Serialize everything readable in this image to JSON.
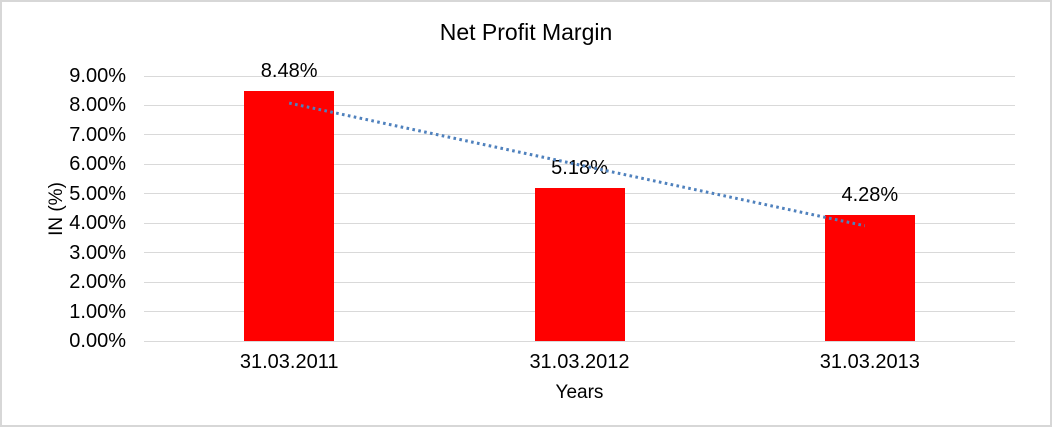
{
  "chart_data": {
    "type": "bar",
    "title": "Net Profit Margin",
    "xlabel": "Years",
    "ylabel": "IN (%)",
    "categories": [
      "31.03.2011",
      "31.03.2012",
      "31.03.2013"
    ],
    "values": [
      8.48,
      5.18,
      4.28
    ],
    "data_labels": [
      "8.48%",
      "5.18%",
      "4.28%"
    ],
    "ylim": [
      0,
      9
    ],
    "ytick_step": 1,
    "ytick_labels": [
      "0.00%",
      "1.00%",
      "2.00%",
      "3.00%",
      "4.00%",
      "5.00%",
      "6.00%",
      "7.00%",
      "8.00%",
      "9.00%"
    ],
    "grid": true,
    "legend": "none",
    "bar_color": "#ff0000",
    "gridline_color": "#d9d9d9",
    "text_color": "#000000",
    "trendline": {
      "type": "linear",
      "style": "dotted",
      "color": "#4f81bd"
    }
  }
}
